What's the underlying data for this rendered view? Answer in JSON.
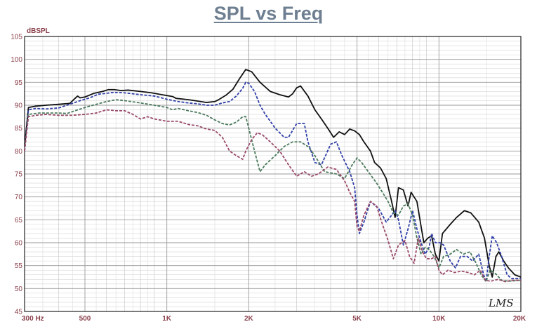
{
  "chart_data": {
    "type": "line",
    "title": "SPL vs Freq",
    "ylabel": "dBSPL",
    "xlabel": "",
    "xscale": "log",
    "xlim": [
      300,
      20000
    ],
    "ylim": [
      45,
      105
    ],
    "grid": true,
    "watermark": "LMS",
    "yticks": [
      45,
      50,
      55,
      60,
      65,
      70,
      75,
      80,
      85,
      90,
      95,
      100,
      105
    ],
    "xticks": [
      {
        "value": 300,
        "label": "300  Hz"
      },
      {
        "value": 500,
        "label": "500"
      },
      {
        "value": 1000,
        "label": "1K"
      },
      {
        "value": 2000,
        "label": "2K"
      },
      {
        "value": 5000,
        "label": "5K"
      },
      {
        "value": 10000,
        "label": "10K"
      },
      {
        "value": 20000,
        "label": "20K"
      }
    ],
    "series": [
      {
        "color": "#111111",
        "dash": "solid",
        "points": [
          [
            300,
            81
          ],
          [
            310,
            89.5
          ],
          [
            330,
            89.8
          ],
          [
            360,
            90
          ],
          [
            400,
            90.2
          ],
          [
            440,
            90.4
          ],
          [
            460,
            91.5
          ],
          [
            470,
            92
          ],
          [
            480,
            91.6
          ],
          [
            500,
            91.8
          ],
          [
            540,
            92.6
          ],
          [
            580,
            93
          ],
          [
            610,
            93.4
          ],
          [
            640,
            93.4
          ],
          [
            680,
            93.2
          ],
          [
            720,
            93.3
          ],
          [
            800,
            93
          ],
          [
            880,
            92.7
          ],
          [
            960,
            92.3
          ],
          [
            1050,
            91.9
          ],
          [
            1080,
            91.5
          ],
          [
            1200,
            91.2
          ],
          [
            1300,
            90.9
          ],
          [
            1400,
            90.6
          ],
          [
            1500,
            90.8
          ],
          [
            1550,
            91.2
          ],
          [
            1650,
            92.2
          ],
          [
            1750,
            93.5
          ],
          [
            1850,
            95.8
          ],
          [
            1950,
            97.8
          ],
          [
            2050,
            97.3
          ],
          [
            2200,
            95
          ],
          [
            2400,
            93
          ],
          [
            2600,
            92.3
          ],
          [
            2800,
            91.8
          ],
          [
            2900,
            92.5
          ],
          [
            3000,
            93.8
          ],
          [
            3100,
            94.2
          ],
          [
            3300,
            92
          ],
          [
            3500,
            89
          ],
          [
            3700,
            87
          ],
          [
            3900,
            85
          ],
          [
            4100,
            83
          ],
          [
            4300,
            84.2
          ],
          [
            4500,
            83.6
          ],
          [
            4700,
            84.8
          ],
          [
            4900,
            84.4
          ],
          [
            5100,
            83.6
          ],
          [
            5300,
            82
          ],
          [
            5600,
            80
          ],
          [
            5800,
            77.5
          ],
          [
            6100,
            76.3
          ],
          [
            6400,
            74
          ],
          [
            6700,
            69
          ],
          [
            6900,
            65.5
          ],
          [
            7100,
            72
          ],
          [
            7400,
            71.5
          ],
          [
            7700,
            68
          ],
          [
            7900,
            71
          ],
          [
            8300,
            69
          ],
          [
            8600,
            63.5
          ],
          [
            8800,
            60
          ],
          [
            9100,
            61
          ],
          [
            9400,
            61.5
          ],
          [
            9700,
            57.5
          ],
          [
            10000,
            56
          ],
          [
            10300,
            62
          ],
          [
            11000,
            64
          ],
          [
            11600,
            65.5
          ],
          [
            12400,
            67
          ],
          [
            13100,
            66.5
          ],
          [
            14000,
            64.5
          ],
          [
            14700,
            61
          ],
          [
            15300,
            55
          ],
          [
            15700,
            52.5
          ],
          [
            16200,
            57
          ],
          [
            16600,
            58
          ],
          [
            17300,
            56
          ],
          [
            18000,
            54.5
          ],
          [
            19000,
            53
          ],
          [
            20000,
            52.5
          ]
        ]
      },
      {
        "color": "#2f3fa8",
        "dash": "4,2",
        "points": [
          [
            300,
            80
          ],
          [
            310,
            89
          ],
          [
            330,
            89.3
          ],
          [
            360,
            89.2
          ],
          [
            400,
            89.4
          ],
          [
            440,
            90.2
          ],
          [
            480,
            91
          ],
          [
            520,
            91.6
          ],
          [
            560,
            92.4
          ],
          [
            600,
            92.6
          ],
          [
            640,
            92.8
          ],
          [
            700,
            92.7
          ],
          [
            800,
            92.3
          ],
          [
            900,
            92
          ],
          [
            1000,
            91.3
          ],
          [
            1100,
            90.8
          ],
          [
            1200,
            90.5
          ],
          [
            1300,
            90.3
          ],
          [
            1400,
            90
          ],
          [
            1500,
            90
          ],
          [
            1600,
            90.5
          ],
          [
            1700,
            90.8
          ],
          [
            1800,
            92
          ],
          [
            1900,
            93.7
          ],
          [
            1950,
            95
          ],
          [
            2000,
            94.8
          ],
          [
            2100,
            93
          ],
          [
            2200,
            90
          ],
          [
            2300,
            88
          ],
          [
            2400,
            86.5
          ],
          [
            2500,
            85
          ],
          [
            2700,
            83
          ],
          [
            2800,
            83
          ],
          [
            3000,
            86
          ],
          [
            3200,
            86
          ],
          [
            3300,
            82
          ],
          [
            3500,
            77.5
          ],
          [
            3700,
            77
          ],
          [
            4000,
            81.5
          ],
          [
            4200,
            82
          ],
          [
            4400,
            79
          ],
          [
            4700,
            75.5
          ],
          [
            4900,
            72
          ],
          [
            5000,
            66
          ],
          [
            5100,
            62
          ],
          [
            5300,
            64.5
          ],
          [
            5600,
            69
          ],
          [
            6000,
            67.5
          ],
          [
            6400,
            64.5
          ],
          [
            6700,
            66
          ],
          [
            6900,
            67
          ],
          [
            7100,
            65
          ],
          [
            7400,
            59.5
          ],
          [
            7700,
            63
          ],
          [
            8000,
            67
          ],
          [
            8300,
            63
          ],
          [
            8600,
            60
          ],
          [
            8900,
            57.5
          ],
          [
            9200,
            59
          ],
          [
            9400,
            62
          ],
          [
            9700,
            60
          ],
          [
            10100,
            60
          ],
          [
            10400,
            59.5
          ],
          [
            11000,
            56
          ],
          [
            11500,
            54.5
          ],
          [
            12000,
            57
          ],
          [
            12700,
            57
          ],
          [
            13300,
            56
          ],
          [
            14000,
            57.5
          ],
          [
            14600,
            53
          ],
          [
            14900,
            51.5
          ],
          [
            15300,
            57
          ],
          [
            15700,
            61.5
          ],
          [
            16300,
            60
          ],
          [
            17000,
            57
          ],
          [
            17800,
            53
          ],
          [
            18500,
            52.2
          ],
          [
            20000,
            52.2
          ]
        ]
      },
      {
        "color": "#4a7a5c",
        "dash": "4,2",
        "points": [
          [
            300,
            80
          ],
          [
            310,
            88
          ],
          [
            340,
            88.3
          ],
          [
            400,
            88.3
          ],
          [
            430,
            88.2
          ],
          [
            460,
            88.8
          ],
          [
            500,
            89.5
          ],
          [
            550,
            90.2
          ],
          [
            600,
            90.8
          ],
          [
            650,
            91.2
          ],
          [
            700,
            91
          ],
          [
            800,
            90.5
          ],
          [
            900,
            90
          ],
          [
            1000,
            89.5
          ],
          [
            1050,
            89
          ],
          [
            1100,
            89.3
          ],
          [
            1200,
            88.8
          ],
          [
            1300,
            88.4
          ],
          [
            1400,
            87.8
          ],
          [
            1500,
            86.8
          ],
          [
            1600,
            86
          ],
          [
            1700,
            85.7
          ],
          [
            1800,
            86.3
          ],
          [
            1900,
            87.5
          ],
          [
            1950,
            87.5
          ],
          [
            2000,
            85
          ],
          [
            2100,
            80
          ],
          [
            2200,
            75.5
          ],
          [
            2300,
            77
          ],
          [
            2500,
            79
          ],
          [
            2700,
            81
          ],
          [
            2900,
            82
          ],
          [
            3100,
            82
          ],
          [
            3300,
            81
          ],
          [
            3500,
            79
          ],
          [
            3800,
            75.5
          ],
          [
            4200,
            75
          ],
          [
            4500,
            74
          ],
          [
            4800,
            77
          ],
          [
            5000,
            78.5
          ],
          [
            5200,
            77.5
          ],
          [
            5500,
            75.5
          ],
          [
            5900,
            73
          ],
          [
            6200,
            71
          ],
          [
            6500,
            69
          ],
          [
            6800,
            66.5
          ],
          [
            7100,
            66
          ],
          [
            7400,
            68
          ],
          [
            7700,
            68.5
          ],
          [
            8000,
            66
          ],
          [
            8300,
            61
          ],
          [
            8600,
            57.5
          ],
          [
            8900,
            59
          ],
          [
            9200,
            58.5
          ],
          [
            9600,
            57
          ],
          [
            10000,
            54.5
          ],
          [
            10400,
            57
          ],
          [
            11000,
            57.5
          ],
          [
            11600,
            58.5
          ],
          [
            12300,
            57.5
          ],
          [
            13000,
            58
          ],
          [
            13700,
            55.5
          ],
          [
            14300,
            53
          ],
          [
            14900,
            51.5
          ],
          [
            15400,
            54
          ],
          [
            16000,
            53.5
          ],
          [
            17000,
            51.8
          ],
          [
            18000,
            51.6
          ],
          [
            20000,
            51.8
          ]
        ]
      },
      {
        "color": "#9a4a6a",
        "dash": "4,2",
        "points": [
          [
            300,
            80
          ],
          [
            310,
            87.5
          ],
          [
            330,
            87.8
          ],
          [
            360,
            88
          ],
          [
            400,
            87.8
          ],
          [
            450,
            87.8
          ],
          [
            500,
            88
          ],
          [
            550,
            88.3
          ],
          [
            600,
            89
          ],
          [
            650,
            88.8
          ],
          [
            700,
            88.8
          ],
          [
            750,
            88
          ],
          [
            800,
            87
          ],
          [
            850,
            87.5
          ],
          [
            900,
            87
          ],
          [
            1000,
            86.5
          ],
          [
            1100,
            86.5
          ],
          [
            1200,
            85.8
          ],
          [
            1300,
            85.5
          ],
          [
            1400,
            84.8
          ],
          [
            1500,
            84.5
          ],
          [
            1600,
            83
          ],
          [
            1700,
            80
          ],
          [
            1800,
            79
          ],
          [
            1900,
            78.2
          ],
          [
            1950,
            80
          ],
          [
            2050,
            82.5
          ],
          [
            2150,
            84
          ],
          [
            2250,
            83.5
          ],
          [
            2400,
            82
          ],
          [
            2600,
            80
          ],
          [
            2800,
            77
          ],
          [
            3000,
            74.5
          ],
          [
            3200,
            75.5
          ],
          [
            3400,
            74.5
          ],
          [
            3600,
            75
          ],
          [
            3900,
            76.5
          ],
          [
            4200,
            76
          ],
          [
            4500,
            73.5
          ],
          [
            4700,
            71
          ],
          [
            4900,
            69
          ],
          [
            5000,
            63.5
          ],
          [
            5100,
            62.5
          ],
          [
            5300,
            66
          ],
          [
            5600,
            69
          ],
          [
            5900,
            68
          ],
          [
            6200,
            64
          ],
          [
            6500,
            60.5
          ],
          [
            6800,
            56.5
          ],
          [
            7100,
            59.5
          ],
          [
            7500,
            60.5
          ],
          [
            7800,
            57
          ],
          [
            8100,
            55.5
          ],
          [
            8400,
            61
          ],
          [
            8700,
            58
          ],
          [
            9000,
            56.5
          ],
          [
            9400,
            56.5
          ],
          [
            9700,
            57
          ],
          [
            10000,
            54
          ],
          [
            10300,
            53
          ],
          [
            10800,
            54
          ],
          [
            11400,
            53.5
          ],
          [
            12100,
            53.8
          ],
          [
            12800,
            53.5
          ],
          [
            13500,
            53
          ],
          [
            14200,
            54
          ],
          [
            14800,
            51.8
          ],
          [
            15500,
            51.6
          ],
          [
            16500,
            52
          ],
          [
            17500,
            51.5
          ],
          [
            18500,
            51.8
          ],
          [
            20000,
            51.8
          ]
        ]
      }
    ]
  }
}
